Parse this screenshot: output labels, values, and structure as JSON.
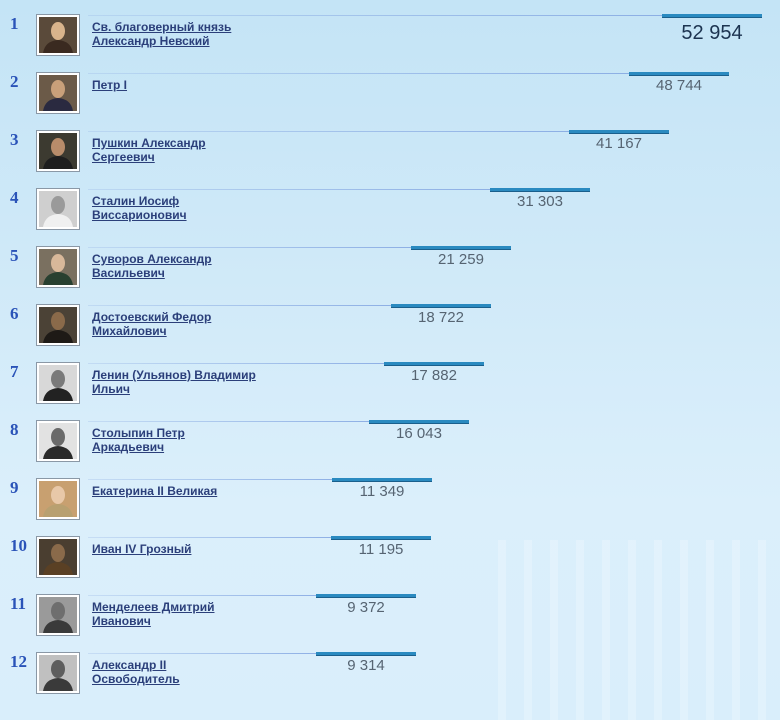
{
  "chart_data": {
    "type": "bar",
    "categories": [
      "Св. благоверный князь Александр Невский",
      "Петр I",
      "Пушкин Александр Сергеевич",
      "Сталин Иосиф Виссарионович",
      "Суворов Александр Васильевич",
      "Достоевский Федор Михайлович",
      "Ленин (Ульянов) Владимир Ильич",
      "Столыпин Петр Аркадьевич",
      "Екатерина II Великая",
      "Иван IV Грозный",
      "Менделеев Дмитрий Иванович",
      "Александр II Освободитель"
    ],
    "values": [
      52954,
      48744,
      41167,
      31303,
      21259,
      18722,
      17882,
      16043,
      11349,
      11195,
      9372,
      9314
    ]
  },
  "rows": [
    {
      "rank": "1",
      "name_lines": [
        "Св. благоверный князь",
        "Александр Невский"
      ],
      "value_label": "52 954",
      "value": 52954,
      "portrait_icon": "portrait-icon"
    },
    {
      "rank": "2",
      "name_lines": [
        "Петр I"
      ],
      "value_label": "48 744",
      "value": 48744,
      "portrait_icon": "portrait-icon"
    },
    {
      "rank": "3",
      "name_lines": [
        "Пушкин Александр",
        "Сергеевич"
      ],
      "value_label": "41 167",
      "value": 41167,
      "portrait_icon": "portrait-icon"
    },
    {
      "rank": "4",
      "name_lines": [
        "Сталин Иосиф",
        "Виссарионович"
      ],
      "value_label": "31 303",
      "value": 31303,
      "portrait_icon": "portrait-icon"
    },
    {
      "rank": "5",
      "name_lines": [
        "Суворов Александр",
        "Васильевич"
      ],
      "value_label": "21 259",
      "value": 21259,
      "portrait_icon": "portrait-icon"
    },
    {
      "rank": "6",
      "name_lines": [
        "Достоевский Федор",
        "Михайлович"
      ],
      "value_label": "18 722",
      "value": 18722,
      "portrait_icon": "portrait-icon"
    },
    {
      "rank": "7",
      "name_lines": [
        "Ленин (Ульянов) Владимир",
        "Ильич"
      ],
      "value_label": "17 882",
      "value": 17882,
      "portrait_icon": "portrait-icon"
    },
    {
      "rank": "8",
      "name_lines": [
        "Столыпин Петр",
        "Аркадьевич"
      ],
      "value_label": "16 043",
      "value": 16043,
      "portrait_icon": "portrait-icon"
    },
    {
      "rank": "9",
      "name_lines": [
        "Екатерина II Великая"
      ],
      "value_label": "11 349",
      "value": 11349,
      "portrait_icon": "portrait-icon"
    },
    {
      "rank": "10",
      "name_lines": [
        "Иван IV Грозный"
      ],
      "value_label": "11 195",
      "value": 11195,
      "portrait_icon": "portrait-icon"
    },
    {
      "rank": "11",
      "name_lines": [
        "Менделеев Дмитрий",
        "Иванович"
      ],
      "value_label": "9 372",
      "value": 9372,
      "portrait_icon": "portrait-icon"
    },
    {
      "rank": "12",
      "name_lines": [
        "Александр II",
        "Освободитель"
      ],
      "value_label": "9 314",
      "value": 9314,
      "portrait_icon": "portrait-icon"
    }
  ],
  "colors": {
    "rank": "#2a53b8",
    "name_link": "#2b3f7a",
    "bar": "#2a8ac0",
    "value_text": "#566472",
    "top_value_text": "#1c3350"
  }
}
